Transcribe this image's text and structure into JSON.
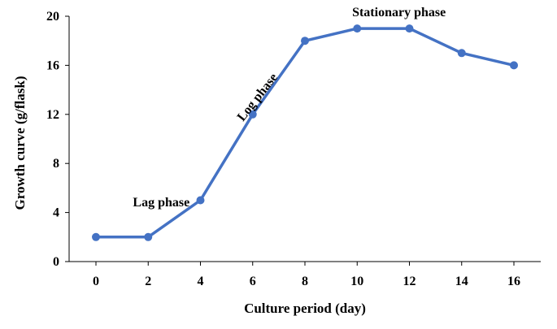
{
  "chart_data": {
    "type": "line",
    "xlabel": "Culture period (day)",
    "ylabel": "Growth curve (g/flask)",
    "xlim": [
      0,
      16
    ],
    "ylim": [
      0,
      20
    ],
    "x_ticks": [
      "0",
      "2",
      "4",
      "6",
      "8",
      "10",
      "12",
      "14",
      "16"
    ],
    "y_ticks": [
      "0",
      "4",
      "8",
      "12",
      "16",
      "20"
    ],
    "grid": false,
    "series": [
      {
        "x": [
          0,
          2,
          4,
          6,
          8,
          10,
          12,
          14,
          16
        ],
        "values": [
          2,
          2,
          5,
          12,
          18,
          19,
          19,
          17,
          16
        ]
      }
    ],
    "annotations": [
      {
        "text": "Lag phase",
        "x": 2.5,
        "y": 4.5
      },
      {
        "text": "Log phase",
        "x": 6.3,
        "y": 13.2
      },
      {
        "text": "Stationary phase",
        "x": 11.6,
        "y": 20
      }
    ],
    "line_color": "#4472c4"
  }
}
